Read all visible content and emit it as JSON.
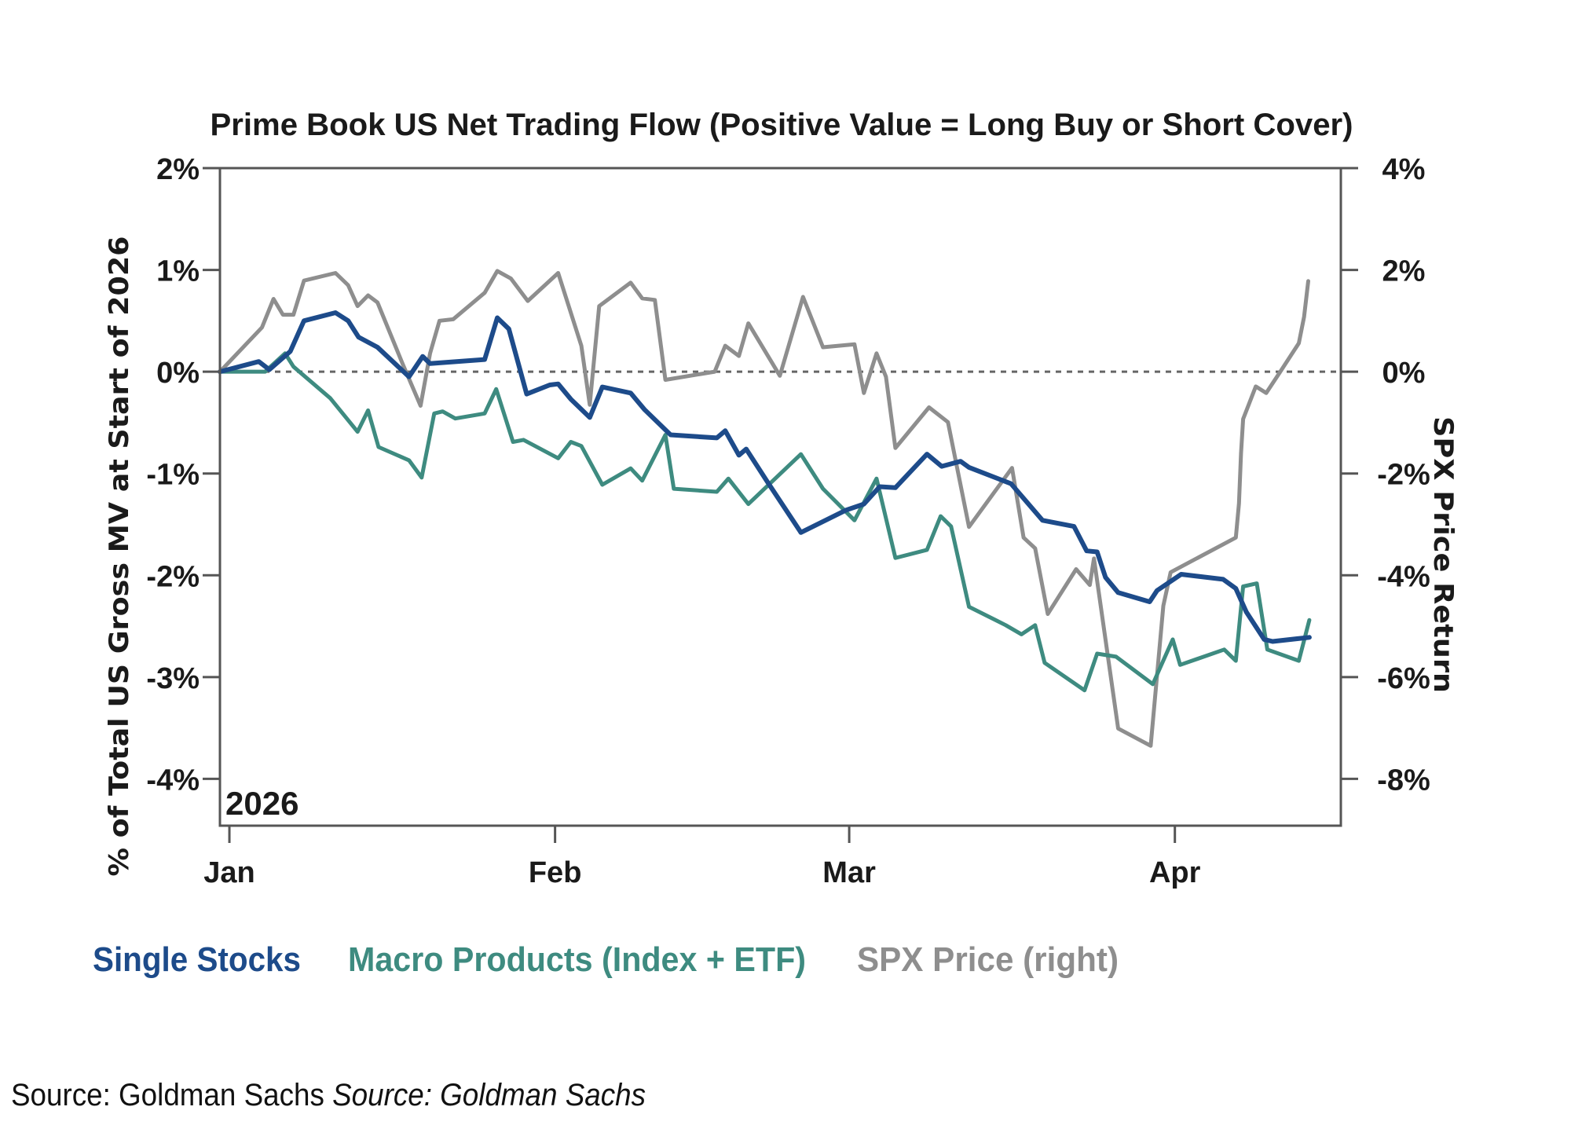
{
  "chart_data": {
    "type": "line",
    "title": "Prime Book US Net Trading Flow (Positive Value = Long Buy or Short Cover)",
    "annotation": "2026",
    "x_axis": {
      "unit": "days since Jan 1, 2026",
      "range": [
        -0.9,
        105.8
      ],
      "ticks": [
        {
          "value": 0,
          "label": "Jan"
        },
        {
          "value": 31,
          "label": "Feb"
        },
        {
          "value": 59,
          "label": "Mar"
        },
        {
          "value": 90,
          "label": "Apr"
        }
      ]
    },
    "y_axis_left": {
      "label": "% of Total US Gross MV at Start of 2026",
      "range": [
        -4.46,
        2
      ],
      "ticks": [
        {
          "value": 2,
          "label": "2%"
        },
        {
          "value": 1,
          "label": "1%"
        },
        {
          "value": 0,
          "label": "0%"
        },
        {
          "value": -1,
          "label": "-1%"
        },
        {
          "value": -2,
          "label": "-2%"
        },
        {
          "value": -3,
          "label": "-3%"
        },
        {
          "value": -4,
          "label": "-4%"
        }
      ]
    },
    "y_axis_right": {
      "label": "SPX Price Return",
      "range": [
        -8.92,
        4
      ],
      "ticks": [
        {
          "value": 4,
          "label": "4%"
        },
        {
          "value": 2,
          "label": "2%"
        },
        {
          "value": 0,
          "label": "0%"
        },
        {
          "value": -2,
          "label": "-2%"
        },
        {
          "value": -4,
          "label": "-4%"
        },
        {
          "value": -6,
          "label": "-6%"
        },
        {
          "value": -8,
          "label": "-8%"
        }
      ]
    },
    "zero_line": {
      "value": 0,
      "style": "dashed"
    },
    "grid": false,
    "legend_position": "bottom-left",
    "series": [
      {
        "name": "Single Stocks",
        "axis": "left",
        "color": "#1d4b8a",
        "points": [
          [
            -0.9,
            0
          ],
          [
            2.8,
            0.1
          ],
          [
            3.8,
            0.02
          ],
          [
            5.8,
            0.2
          ],
          [
            7.1,
            0.5
          ],
          [
            10.1,
            0.58
          ],
          [
            11.3,
            0.5
          ],
          [
            12.3,
            0.34
          ],
          [
            14.1,
            0.24
          ],
          [
            17.1,
            -0.05
          ],
          [
            18.4,
            0.15
          ],
          [
            19.1,
            0.08
          ],
          [
            24.3,
            0.12
          ],
          [
            25.5,
            0.53
          ],
          [
            26.6,
            0.42
          ],
          [
            28.3,
            -0.22
          ],
          [
            30.5,
            -0.13
          ],
          [
            31.3,
            -0.12
          ],
          [
            32.5,
            -0.27
          ],
          [
            34.3,
            -0.45
          ],
          [
            35.5,
            -0.15
          ],
          [
            38.2,
            -0.21
          ],
          [
            39.5,
            -0.37
          ],
          [
            42.0,
            -0.62
          ],
          [
            46.4,
            -0.65
          ],
          [
            47.2,
            -0.58
          ],
          [
            48.5,
            -0.82
          ],
          [
            49.2,
            -0.76
          ],
          [
            51.2,
            -1.08
          ],
          [
            54.4,
            -1.58
          ],
          [
            58.7,
            -1.36
          ],
          [
            60.4,
            -1.3
          ],
          [
            61.9,
            -1.13
          ],
          [
            63.4,
            -1.14
          ],
          [
            66.4,
            -0.81
          ],
          [
            67.8,
            -0.93
          ],
          [
            69.6,
            -0.88
          ],
          [
            70.4,
            -0.94
          ],
          [
            74.4,
            -1.1
          ],
          [
            77.4,
            -1.46
          ],
          [
            80.4,
            -1.52
          ],
          [
            81.6,
            -1.76
          ],
          [
            82.6,
            -1.77
          ],
          [
            83.4,
            -2.02
          ],
          [
            84.6,
            -2.17
          ],
          [
            87.6,
            -2.26
          ],
          [
            88.3,
            -2.15
          ],
          [
            90.6,
            -1.99
          ],
          [
            94.6,
            -2.04
          ],
          [
            95.8,
            -2.13
          ],
          [
            96.8,
            -2.36
          ],
          [
            98.5,
            -2.63
          ],
          [
            99.3,
            -2.65
          ],
          [
            102.8,
            -2.61
          ]
        ]
      },
      {
        "name": "Macro Products (Index + ETF)",
        "axis": "left",
        "color": "#3e8b80",
        "points": [
          [
            -0.9,
            0
          ],
          [
            3.4,
            0
          ],
          [
            5.3,
            0.18
          ],
          [
            6.1,
            0.05
          ],
          [
            9.6,
            -0.26
          ],
          [
            12.2,
            -0.59
          ],
          [
            13.2,
            -0.38
          ],
          [
            14.2,
            -0.74
          ],
          [
            17.1,
            -0.87
          ],
          [
            18.3,
            -1.04
          ],
          [
            19.5,
            -0.41
          ],
          [
            20.3,
            -0.39
          ],
          [
            21.5,
            -0.46
          ],
          [
            24.3,
            -0.41
          ],
          [
            25.4,
            -0.17
          ],
          [
            27.0,
            -0.69
          ],
          [
            28.0,
            -0.67
          ],
          [
            31.3,
            -0.85
          ],
          [
            32.5,
            -0.69
          ],
          [
            33.5,
            -0.73
          ],
          [
            35.5,
            -1.11
          ],
          [
            38.2,
            -0.95
          ],
          [
            39.3,
            -1.07
          ],
          [
            41.5,
            -0.62
          ],
          [
            42.3,
            -1.15
          ],
          [
            46.4,
            -1.18
          ],
          [
            47.5,
            -1.05
          ],
          [
            49.4,
            -1.3
          ],
          [
            54.4,
            -0.81
          ],
          [
            56.5,
            -1.15
          ],
          [
            59.5,
            -1.46
          ],
          [
            61.6,
            -1.05
          ],
          [
            63.4,
            -1.83
          ],
          [
            66.4,
            -1.75
          ],
          [
            67.7,
            -1.42
          ],
          [
            68.7,
            -1.52
          ],
          [
            70.4,
            -2.31
          ],
          [
            73.9,
            -2.49
          ],
          [
            75.4,
            -2.58
          ],
          [
            76.7,
            -2.49
          ],
          [
            77.6,
            -2.86
          ],
          [
            81.4,
            -3.13
          ],
          [
            82.6,
            -2.77
          ],
          [
            84.4,
            -2.8
          ],
          [
            87.9,
            -3.07
          ],
          [
            89.8,
            -2.63
          ],
          [
            90.5,
            -2.88
          ],
          [
            94.7,
            -2.73
          ],
          [
            95.8,
            -2.84
          ],
          [
            96.5,
            -2.11
          ],
          [
            97.8,
            -2.08
          ],
          [
            98.8,
            -2.73
          ],
          [
            101.8,
            -2.84
          ],
          [
            102.8,
            -2.44
          ]
        ]
      },
      {
        "name": "SPX Price (right)",
        "axis": "right",
        "color": "#8e8e8e",
        "points": [
          [
            -0.9,
            0
          ],
          [
            3.1,
            0.87
          ],
          [
            4.2,
            1.43
          ],
          [
            5.1,
            1.12
          ],
          [
            6.1,
            1.12
          ],
          [
            7.1,
            1.79
          ],
          [
            10.1,
            1.94
          ],
          [
            11.3,
            1.7
          ],
          [
            12.2,
            1.29
          ],
          [
            13.2,
            1.5
          ],
          [
            14.1,
            1.36
          ],
          [
            16.5,
            0.15
          ],
          [
            18.2,
            -0.67
          ],
          [
            19.1,
            0.36
          ],
          [
            20.0,
            1.0
          ],
          [
            21.3,
            1.03
          ],
          [
            24.3,
            1.55
          ],
          [
            25.5,
            1.98
          ],
          [
            26.8,
            1.83
          ],
          [
            28.4,
            1.39
          ],
          [
            31.3,
            1.94
          ],
          [
            33.5,
            0.51
          ],
          [
            34.3,
            -0.65
          ],
          [
            35.2,
            1.29
          ],
          [
            38.2,
            1.75
          ],
          [
            39.3,
            1.44
          ],
          [
            40.5,
            1.41
          ],
          [
            41.5,
            -0.16
          ],
          [
            46.2,
            0.0
          ],
          [
            47.2,
            0.51
          ],
          [
            48.5,
            0.31
          ],
          [
            49.4,
            0.95
          ],
          [
            52.4,
            -0.08
          ],
          [
            54.6,
            1.47
          ],
          [
            56.5,
            0.48
          ],
          [
            59.5,
            0.54
          ],
          [
            60.4,
            -0.42
          ],
          [
            61.6,
            0.36
          ],
          [
            62.5,
            -0.1
          ],
          [
            63.4,
            -1.5
          ],
          [
            66.6,
            -0.7
          ],
          [
            68.4,
            -0.99
          ],
          [
            70.4,
            -3.05
          ],
          [
            74.5,
            -1.89
          ],
          [
            75.6,
            -3.26
          ],
          [
            76.7,
            -3.47
          ],
          [
            77.9,
            -4.76
          ],
          [
            80.6,
            -3.88
          ],
          [
            81.9,
            -4.19
          ],
          [
            82.3,
            -3.67
          ],
          [
            84.6,
            -7.01
          ],
          [
            87.7,
            -7.35
          ],
          [
            88.9,
            -4.6
          ],
          [
            89.6,
            -3.94
          ],
          [
            95.8,
            -3.26
          ],
          [
            96.1,
            -2.59
          ],
          [
            96.3,
            -1.61
          ],
          [
            96.5,
            -0.93
          ],
          [
            97.7,
            -0.29
          ],
          [
            98.7,
            -0.42
          ],
          [
            100.1,
            0.02
          ],
          [
            101.8,
            0.56
          ],
          [
            102.3,
            1.08
          ],
          [
            102.7,
            1.78
          ]
        ]
      }
    ]
  },
  "footer": {
    "source_plain": "Source: Goldman Sachs",
    "source_italic": "Source: Goldman Sachs"
  }
}
